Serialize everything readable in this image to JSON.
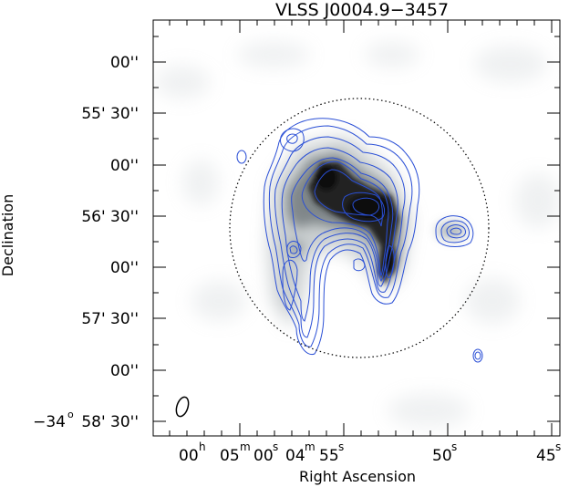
{
  "figure": {
    "title": "VLSS J0004.9−3457",
    "xlabel": "Right Ascension",
    "ylabel": "Declination",
    "ra_ticks": {
      "hours": "00",
      "h": "h",
      "min05": "05",
      "m": "m",
      "s00": "00",
      "s": "s",
      "min04": "04",
      "s55": "55",
      "s50": "50",
      "s45": "45"
    },
    "dec_ticks": {
      "l0": "00''",
      "l1": "55' 30''",
      "l2": "00''",
      "l3": "56' 30''",
      "l4": "00''",
      "l5": "57' 30''",
      "l6": "00''",
      "deg": "−34",
      "o": "o",
      "l7": "58' 30''"
    },
    "colors": {
      "contour": "#2a4fd6",
      "frame": "#000000",
      "grayscale_peak": "#0a0a0a",
      "background": "#ffffff"
    }
  }
}
